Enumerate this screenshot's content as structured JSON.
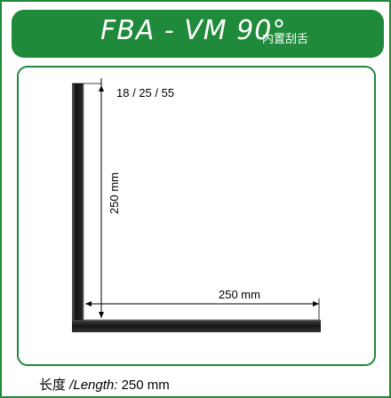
{
  "header": {
    "model": "FBA - VM 90°",
    "subtitle": "内置刮舌"
  },
  "dimensions": {
    "thickness": "18 / 25 / 55",
    "height": "250 mm",
    "width": "250 mm"
  },
  "caption": {
    "label_cn": "长度",
    "label_en": " /Length:",
    "value": " 250 mm"
  },
  "colors": {
    "brand_green": "#1e8a3a",
    "profile_dark": "#1a1a1a"
  }
}
